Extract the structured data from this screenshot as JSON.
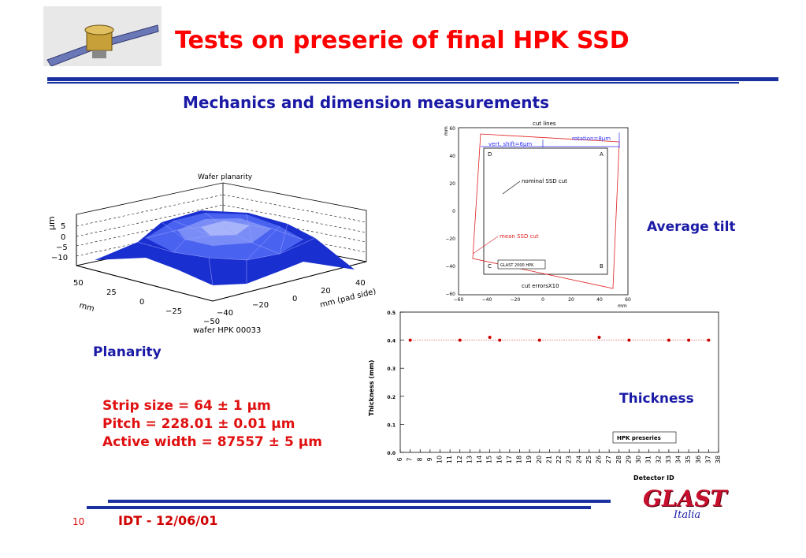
{
  "header": {
    "title": "Tests on preserie of final HPK SSD",
    "subtitle": "Mechanics and dimension measurements"
  },
  "planarity_plot": {
    "title": "Wafer planarity",
    "zlabel": "μm",
    "z_ticks": [
      "5",
      "0",
      "−5",
      "−10"
    ],
    "x_ticks": [
      "50",
      "25",
      "0",
      "−25",
      "−50"
    ],
    "xlabel": "mm",
    "y_ticks": [
      "−40",
      "−20",
      "0",
      "20",
      "40"
    ],
    "ylabel": "mm (pad side)",
    "caption": "wafer HPK 00033"
  },
  "cut_plot": {
    "title": "cut lines",
    "ylabel": "mm",
    "xlabel": "mm",
    "x_ticks": [
      "−60",
      "−40",
      "−20",
      "0",
      "20",
      "40",
      "60"
    ],
    "y_ticks": [
      "60",
      "40",
      "20",
      "0",
      "−20",
      "−40",
      "−60"
    ],
    "rotation_label": "rotation=8μm",
    "shift_label": "vert. shift=6μm",
    "corner_a": "A",
    "corner_b": "B",
    "corner_c": "C",
    "corner_d": "D",
    "nominal_label": "nominal SSD cut",
    "mean_label": "mean SSD cut",
    "box_label": "GLAST 2000  HPK",
    "errors_label": "cut errorsX10"
  },
  "labels": {
    "planarity": "Planarity",
    "average_tilt": "Average tilt",
    "thickness": "Thickness"
  },
  "specs": {
    "strip": "Strip size = 64 ± 1 μm",
    "pitch": "Pitch = 228.01 ± 0.01 μm",
    "active": "Active width = 87557 ± 5 μm"
  },
  "footer": {
    "page_number": "10",
    "date": "IDT - 12/06/01",
    "logo": "GLAST",
    "logo_sub": "Italia"
  },
  "colors": {
    "title_red": "#ff0000",
    "accent_blue": "#1a1aa6",
    "rule_blue": "#1a2fa0",
    "surface_blue": "#2a3fe0",
    "point_red": "#cc0000"
  },
  "chart_data": [
    {
      "type": "scatter",
      "xlabel": "Detector ID",
      "ylabel": "Thickness (mm)",
      "legend": "HPK preseries",
      "xlim": [
        6,
        38
      ],
      "ylim": [
        0.0,
        0.5
      ],
      "y_ticks": [
        "0.0",
        "0.1",
        "0.2",
        "0.3",
        "0.4",
        "0.5"
      ],
      "categories": [
        "6",
        "7",
        "8",
        "9",
        "10",
        "11",
        "12",
        "13",
        "14",
        "15",
        "16",
        "17",
        "18",
        "19",
        "20",
        "21",
        "22",
        "23",
        "24",
        "25",
        "26",
        "27",
        "28",
        "29",
        "30",
        "31",
        "32",
        "33",
        "34",
        "35",
        "36",
        "37",
        "38"
      ],
      "x": [
        7,
        12,
        15,
        16,
        20,
        26,
        29,
        33,
        35,
        37
      ],
      "values": [
        0.4,
        0.4,
        0.41,
        0.4,
        0.4,
        0.41,
        0.4,
        0.4,
        0.4,
        0.4
      ],
      "reference_line": 0.4
    }
  ]
}
